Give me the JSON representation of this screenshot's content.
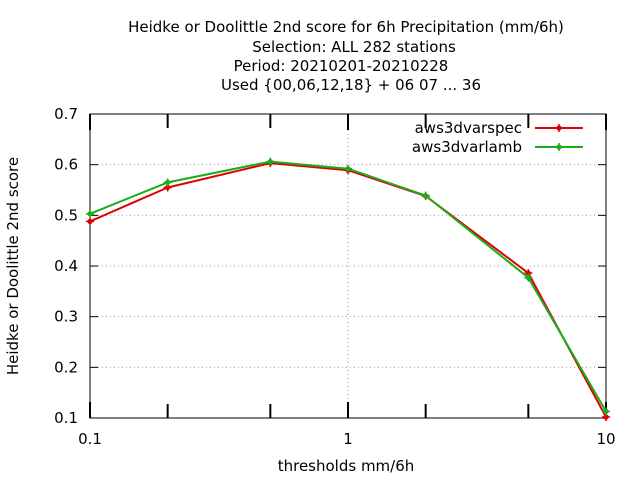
{
  "chart_data": {
    "type": "line",
    "title_lines": [
      "Heidke or Doolittle 2nd score  for 6h Precipitation (mm/6h)",
      "Selection: ALL    282 stations",
      "Period: 20210201-20210228",
      "Used {00,06,12,18} + 06 07 ... 36"
    ],
    "xlabel": "thresholds mm/6h",
    "ylabel": "Heidke or Doolittle 2nd score",
    "x_scale": "log",
    "xlim": [
      0.1,
      10
    ],
    "ylim": [
      0.1,
      0.7
    ],
    "x_ticks": [
      {
        "value": 0.1,
        "label": "0.1"
      },
      {
        "value": 1,
        "label": "1"
      },
      {
        "value": 10,
        "label": "10"
      }
    ],
    "x_minor_ticks": [
      0.2,
      0.5,
      2,
      5
    ],
    "y_ticks": [
      {
        "value": 0.1,
        "label": "0.1"
      },
      {
        "value": 0.2,
        "label": "0.2"
      },
      {
        "value": 0.3,
        "label": "0.3"
      },
      {
        "value": 0.4,
        "label": "0.4"
      },
      {
        "value": 0.5,
        "label": "0.5"
      },
      {
        "value": 0.6,
        "label": "0.6"
      },
      {
        "value": 0.7,
        "label": "0.7"
      }
    ],
    "grid": true,
    "legend_position": "top-right",
    "series": [
      {
        "name": "aws3dvarspec",
        "color": "#e00000",
        "x": [
          0.1,
          0.2,
          0.5,
          1,
          2,
          5,
          10
        ],
        "y": [
          0.488,
          0.555,
          0.603,
          0.589,
          0.538,
          0.386,
          0.102
        ]
      },
      {
        "name": "aws3dvarlamb",
        "color": "#1aad1a",
        "x": [
          0.1,
          0.2,
          0.5,
          1,
          2,
          5,
          10
        ],
        "y": [
          0.503,
          0.565,
          0.606,
          0.592,
          0.539,
          0.377,
          0.113
        ]
      }
    ]
  }
}
